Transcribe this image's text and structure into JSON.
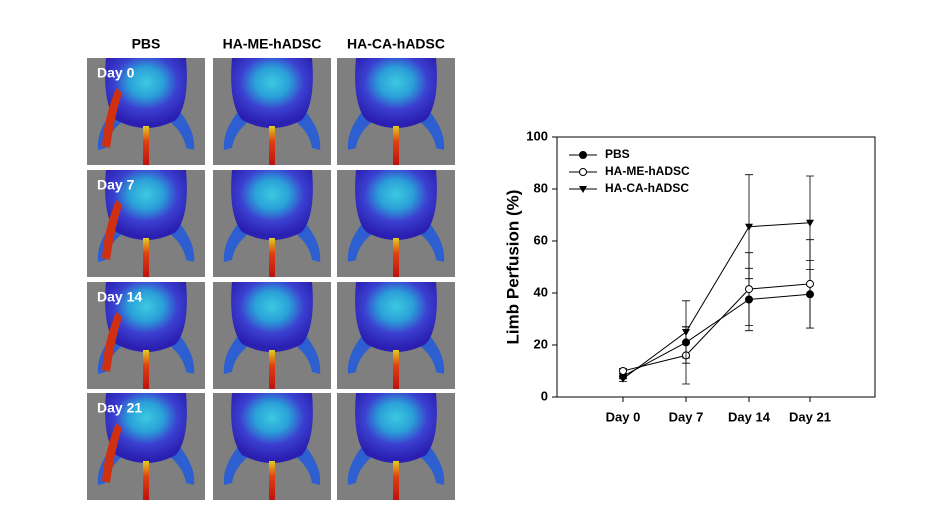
{
  "panels": {
    "columns": [
      "PBS",
      "HA-ME-hADSC",
      "HA-CA-hADSC"
    ],
    "rows": [
      "Day 0",
      "Day 7",
      "Day 14",
      "Day 21"
    ]
  },
  "chart_data": {
    "type": "line",
    "ylabel": "Limb Perfusion (%)",
    "categories": [
      "Day 0",
      "Day 7",
      "Day 14",
      "Day 21"
    ],
    "series": [
      {
        "name": "PBS",
        "color": "#000000",
        "marker": "filled-circle",
        "values": [
          8,
          21,
          37.5,
          39.5
        ],
        "errors": [
          1,
          6,
          12,
          13
        ]
      },
      {
        "name": "HA-ME-hADSC",
        "color": "#000000",
        "marker": "open-circle",
        "values": [
          10,
          16,
          41.5,
          43.5
        ],
        "errors": [
          1,
          11,
          14,
          17
        ]
      },
      {
        "name": "HA-CA-hADSC",
        "color": "#000000",
        "marker": "filled-triangle-down",
        "values": [
          7,
          25,
          65.5,
          67
        ],
        "errors": [
          1,
          12,
          20,
          18
        ]
      }
    ],
    "ylim": [
      0,
      100
    ],
    "yticks": [
      0,
      20,
      40,
      60,
      80,
      100
    ],
    "legend": "upper-left"
  }
}
